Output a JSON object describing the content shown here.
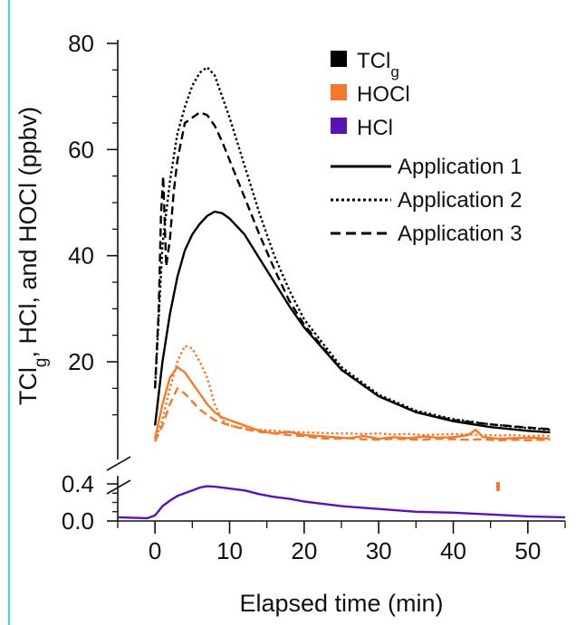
{
  "chart_data": {
    "type": "line",
    "title": "",
    "xlabel": "Elapsed time (min)",
    "ylabel": {
      "parts": [
        {
          "text": "TCl",
          "sub": false
        },
        {
          "text": "g",
          "sub": true
        },
        {
          "text": ", HCl, and HOCl (ppbv)",
          "sub": false
        }
      ]
    },
    "xlim": [
      -5,
      55
    ],
    "x_ticks": [
      "0",
      "10",
      "20",
      "30",
      "40",
      "50"
    ],
    "x_tick_values": [
      0,
      10,
      20,
      30,
      40,
      50
    ],
    "ylim_upper": [
      5,
      80
    ],
    "y_ticks_upper": [
      "20",
      "40",
      "60",
      "80"
    ],
    "y_tick_values_upper": [
      20,
      40,
      60,
      80
    ],
    "ylim_lower": [
      0,
      0.4
    ],
    "y_ticks_lower": [
      "0.0",
      "0.4"
    ],
    "y_tick_values_lower": [
      0.0,
      0.4
    ],
    "axis_break": true,
    "grid": false,
    "legend_position": "top-right",
    "legend_species": [
      {
        "label_main": "TCl",
        "label_sub": "g",
        "color": "#000000"
      },
      {
        "label_main": "HOCl",
        "label_sub": "",
        "color": "#f47a2a"
      },
      {
        "label_main": "HCl",
        "label_sub": "",
        "color": "#5a12b8"
      }
    ],
    "legend_styles": [
      {
        "label": "Application 1",
        "dash": "solid"
      },
      {
        "label": "Application 2",
        "dash": "dotted"
      },
      {
        "label": "Application 3",
        "dash": "dashed"
      }
    ],
    "series": [
      {
        "species": "TClg",
        "application": "Application 1",
        "panel": "upper",
        "color": "#000000",
        "dash": "solid",
        "x": [
          0,
          1,
          2,
          3,
          4,
          5,
          6,
          7,
          8,
          9,
          10,
          12,
          14,
          16,
          18,
          20,
          25,
          30,
          35,
          40,
          45,
          50,
          53
        ],
        "y": [
          8,
          20,
          29,
          36,
          41,
          44,
          46,
          47.5,
          48.3,
          48,
          47,
          44,
          39.5,
          35,
          30.5,
          26.5,
          18.5,
          13.5,
          10.5,
          8.8,
          7.7,
          7,
          6.7
        ]
      },
      {
        "species": "TClg",
        "application": "Application 2",
        "panel": "upper",
        "color": "#000000",
        "dash": "dotted",
        "x": [
          0,
          1,
          2,
          3,
          4,
          5,
          6,
          7,
          8,
          9,
          10,
          12,
          14,
          16,
          18,
          20,
          25,
          30,
          35,
          40,
          45,
          50,
          53
        ],
        "y": [
          15,
          42,
          54,
          63,
          68,
          72,
          74.5,
          75.5,
          74,
          70,
          66,
          57,
          48,
          40,
          33.5,
          28,
          19,
          13.8,
          10.8,
          9.2,
          8.2,
          7.5,
          7.2
        ]
      },
      {
        "species": "TClg",
        "application": "Application 3",
        "panel": "upper",
        "color": "#000000",
        "dash": "dashed",
        "x": [
          0,
          0.5,
          0.8,
          1.1,
          1.5,
          2,
          2.5,
          3,
          4,
          5,
          6,
          7,
          8,
          9,
          10,
          12,
          14,
          16,
          18,
          20,
          25,
          30,
          35,
          40,
          45,
          50,
          53
        ],
        "y": [
          15,
          30,
          48,
          55,
          38,
          43,
          52,
          58,
          65,
          66,
          67,
          66.5,
          64.5,
          61.5,
          58,
          51,
          44,
          37.5,
          31.5,
          27,
          18.5,
          13.5,
          10.5,
          9,
          8.2,
          7.6,
          7.3
        ]
      },
      {
        "species": "HOCl",
        "application": "Application 1",
        "panel": "upper",
        "color": "#f47a2a",
        "dash": "solid",
        "x": [
          0,
          1,
          2,
          3,
          4,
          5,
          6,
          7,
          8,
          9,
          10,
          12,
          14,
          16,
          18,
          20,
          22,
          24,
          26,
          28,
          30,
          32,
          34,
          36,
          38,
          40,
          42,
          43,
          44,
          46,
          48,
          50,
          52,
          53
        ],
        "y": [
          5.5,
          12,
          17,
          19,
          18,
          16,
          14,
          12,
          10.5,
          9.5,
          9,
          8,
          7,
          6.5,
          6.8,
          6.2,
          6,
          5.8,
          5.6,
          6,
          5.5,
          5.8,
          5.6,
          5.9,
          5.7,
          5.8,
          6.2,
          7.2,
          5.8,
          5.5,
          5.6,
          5.7,
          5.6,
          5.5
        ]
      },
      {
        "species": "HOCl",
        "application": "Application 2",
        "panel": "upper",
        "color": "#f47a2a",
        "dash": "dotted",
        "x": [
          0,
          1,
          2,
          3,
          4,
          5,
          6,
          7,
          8,
          9,
          10,
          12,
          14,
          16,
          18,
          20,
          22,
          24,
          26,
          28,
          30,
          32,
          34,
          36,
          38,
          40,
          42,
          44,
          46,
          48,
          50,
          52,
          53
        ],
        "y": [
          5,
          9,
          15,
          20,
          23,
          22.5,
          20,
          17,
          12,
          9,
          8,
          7.5,
          7.2,
          7,
          6.8,
          6.7,
          6.6,
          6.5,
          6.5,
          6.4,
          6.5,
          6.3,
          6.4,
          6.2,
          6.3,
          6.4,
          6.3,
          6.2,
          6.1,
          6.2,
          6.0,
          6.1,
          6.0
        ]
      },
      {
        "species": "HOCl",
        "application": "Application 3",
        "panel": "upper",
        "color": "#f47a2a",
        "dash": "dashed",
        "x": [
          0,
          1,
          2,
          3,
          4,
          5,
          6,
          7,
          8,
          9,
          10,
          12,
          14,
          16,
          18,
          20,
          22,
          24,
          26,
          28,
          30,
          32,
          34,
          36,
          38,
          40,
          42,
          44,
          46,
          48,
          50,
          52,
          53
        ],
        "y": [
          5,
          8,
          12,
          15,
          14,
          12.5,
          11,
          10,
          9,
          8.5,
          8,
          7.3,
          6.8,
          6.5,
          6.2,
          6,
          5.6,
          5.5,
          5.6,
          5.4,
          5.3,
          5.5,
          5.4,
          5.3,
          5.5,
          5.4,
          5.3,
          5.4,
          5.2,
          5.3,
          5.2,
          5.3,
          5.2
        ]
      },
      {
        "species": "HCl",
        "application": "Application 1",
        "panel": "lower",
        "color": "#5a12b8",
        "dash": "solid",
        "x": [
          -5,
          -1,
          0,
          1,
          2,
          3,
          4,
          5,
          6,
          7,
          8,
          9,
          10,
          12,
          14,
          16,
          18,
          20,
          25,
          30,
          35,
          40,
          45,
          50,
          55
        ],
        "y": [
          0.04,
          0.03,
          0.06,
          0.16,
          0.22,
          0.27,
          0.3,
          0.33,
          0.36,
          0.375,
          0.37,
          0.36,
          0.35,
          0.33,
          0.29,
          0.26,
          0.24,
          0.21,
          0.16,
          0.13,
          0.1,
          0.09,
          0.07,
          0.05,
          0.04
        ]
      }
    ],
    "markers": [
      {
        "species": "HOCl",
        "x": 46,
        "panel": "between",
        "color": "#f47a2a"
      }
    ]
  }
}
